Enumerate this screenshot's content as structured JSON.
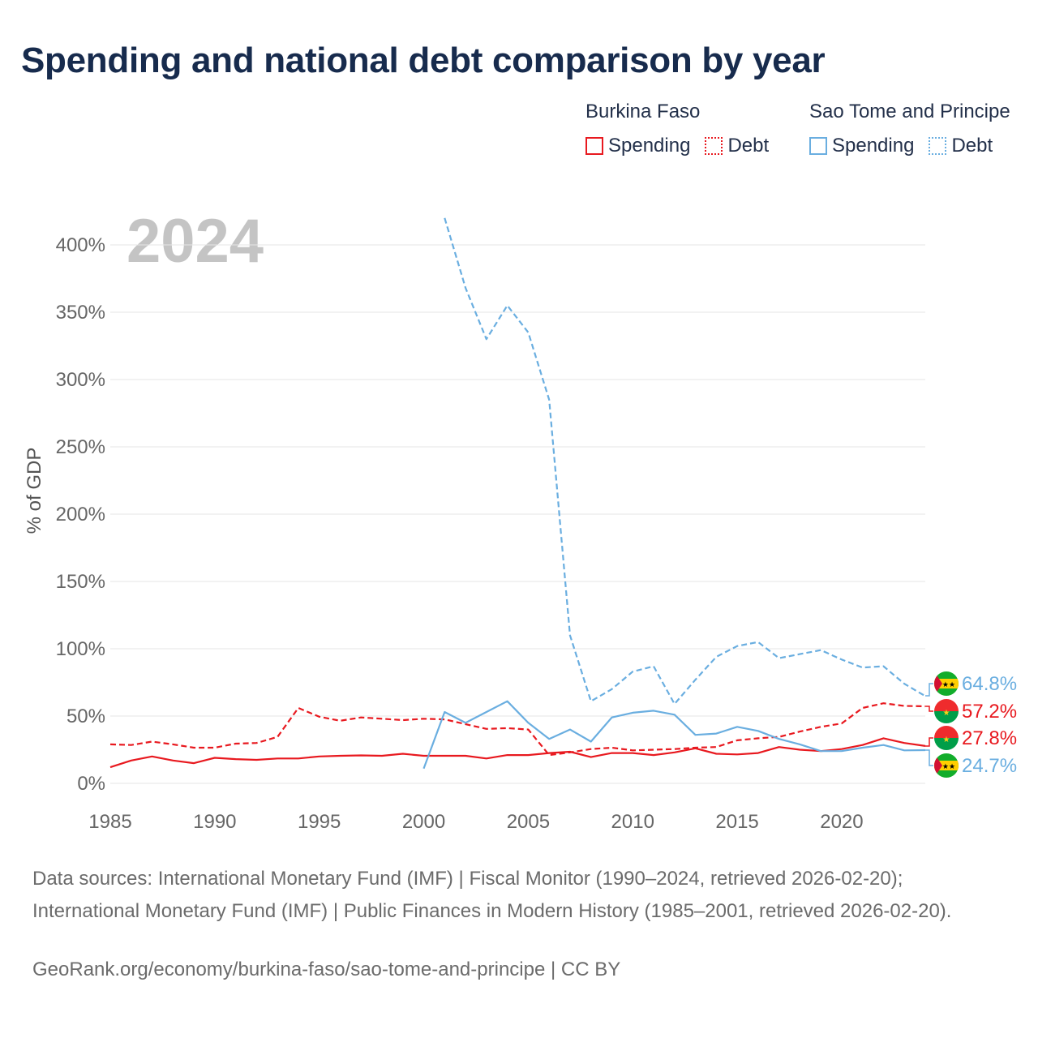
{
  "title": "Spending and national debt comparison by year",
  "year_watermark": "2024",
  "legend": {
    "groups": [
      {
        "country": "Burkina Faso",
        "color": "#e8191f",
        "items": [
          {
            "label": "Spending",
            "style": "solid"
          },
          {
            "label": "Debt",
            "style": "dotted"
          }
        ]
      },
      {
        "country": "Sao Tome and Principe",
        "color": "#6aaee0",
        "items": [
          {
            "label": "Spending",
            "style": "solid"
          },
          {
            "label": "Debt",
            "style": "dotted"
          }
        ]
      }
    ]
  },
  "chart_data": {
    "type": "line",
    "title": "Spending and national debt comparison by year",
    "xlabel": "",
    "ylabel": "% of GDP",
    "xlim": [
      1985,
      2024
    ],
    "ylim": [
      0,
      420
    ],
    "x_ticks": [
      1985,
      1990,
      1995,
      2000,
      2005,
      2010,
      2015,
      2020
    ],
    "x_tick_labels": [
      "1985",
      "1990",
      "1995",
      "2000",
      "2005",
      "2010",
      "2015",
      "2020"
    ],
    "y_ticks": [
      0,
      50,
      100,
      150,
      200,
      250,
      300,
      350,
      400
    ],
    "y_tick_labels": [
      "0%",
      "50%",
      "100%",
      "150%",
      "200%",
      "250%",
      "300%",
      "350%",
      "400%"
    ],
    "grid": true,
    "series": [
      {
        "name": "Burkina Faso Spending",
        "color": "#e8191f",
        "style": "solid",
        "end_label": "27.8%",
        "x": [
          1985,
          1986,
          1987,
          1988,
          1989,
          1990,
          1991,
          1992,
          1993,
          1994,
          1995,
          1996,
          1997,
          1998,
          1999,
          2000,
          2001,
          2002,
          2003,
          2004,
          2005,
          2006,
          2007,
          2008,
          2009,
          2010,
          2011,
          2012,
          2013,
          2014,
          2015,
          2016,
          2017,
          2018,
          2019,
          2020,
          2021,
          2022,
          2023,
          2024
        ],
        "values": [
          12,
          17,
          20,
          17,
          15,
          19,
          18,
          17.5,
          18.5,
          18.5,
          20,
          20.5,
          20.8,
          20.5,
          22,
          20.5,
          20.5,
          20.5,
          18.5,
          21,
          21,
          22.5,
          23.5,
          19.5,
          22.5,
          22.5,
          21,
          23,
          26,
          22,
          21.5,
          22.5,
          27,
          25,
          24,
          25.5,
          28.5,
          33.5,
          30,
          27.8
        ]
      },
      {
        "name": "Burkina Faso Debt",
        "color": "#e8191f",
        "style": "dashed",
        "end_label": "57.2%",
        "x": [
          1985,
          1986,
          1987,
          1988,
          1989,
          1990,
          1991,
          1992,
          1993,
          1994,
          1995,
          1996,
          1997,
          1998,
          1999,
          2000,
          2001,
          2002,
          2003,
          2004,
          2005,
          2006,
          2007,
          2008,
          2009,
          2010,
          2011,
          2012,
          2013,
          2014,
          2015,
          2016,
          2017,
          2018,
          2019,
          2020,
          2021,
          2022,
          2023,
          2024
        ],
        "values": [
          29,
          28.5,
          31,
          29,
          26.5,
          26.5,
          29.5,
          30,
          34.5,
          56,
          49.5,
          46.5,
          49,
          48,
          47,
          48,
          47.5,
          44,
          40.5,
          41,
          40,
          21,
          23,
          25.5,
          26.5,
          24.5,
          25,
          25.5,
          26.5,
          27,
          32,
          33.5,
          34.5,
          38.5,
          42,
          44.5,
          56,
          59.5,
          57.5,
          57.2
        ]
      },
      {
        "name": "Sao Tome and Principe Spending",
        "color": "#6aaee0",
        "style": "solid",
        "end_label": "24.7%",
        "x": [
          2000,
          2001,
          2002,
          2003,
          2004,
          2005,
          2006,
          2007,
          2008,
          2009,
          2010,
          2011,
          2012,
          2013,
          2014,
          2015,
          2016,
          2017,
          2018,
          2019,
          2020,
          2021,
          2022,
          2023,
          2024
        ],
        "values": [
          11,
          53,
          45,
          53,
          61,
          45,
          33,
          40,
          31,
          49,
          52.5,
          54,
          51,
          36,
          37,
          42,
          39,
          33,
          29,
          24,
          24,
          26.5,
          28.5,
          24.5,
          24.7
        ]
      },
      {
        "name": "Sao Tome and Principe Debt",
        "color": "#6aaee0",
        "style": "dashed",
        "end_label": "64.8%",
        "x": [
          2001,
          2002,
          2003,
          2004,
          2005,
          2006,
          2007,
          2008,
          2009,
          2010,
          2011,
          2012,
          2013,
          2014,
          2015,
          2016,
          2017,
          2018,
          2019,
          2020,
          2021,
          2022,
          2023,
          2024
        ],
        "values": [
          420,
          368,
          330,
          355,
          335,
          285,
          110,
          61,
          70,
          83,
          87,
          59,
          77,
          94,
          102,
          105,
          93,
          96,
          99,
          92,
          86,
          87,
          74,
          64.8
        ]
      }
    ]
  },
  "footer": {
    "sources": "Data sources: International Monetary Fund (IMF) | Fiscal Monitor (1990–2024, retrieved 2026-02-20); International Monetary Fund (IMF) | Public Finances in Modern History (1985–2001, retrieved 2026-02-20).",
    "site": "GeoRank.org/economy/burkina-faso/sao-tome-and-principe | CC BY"
  }
}
